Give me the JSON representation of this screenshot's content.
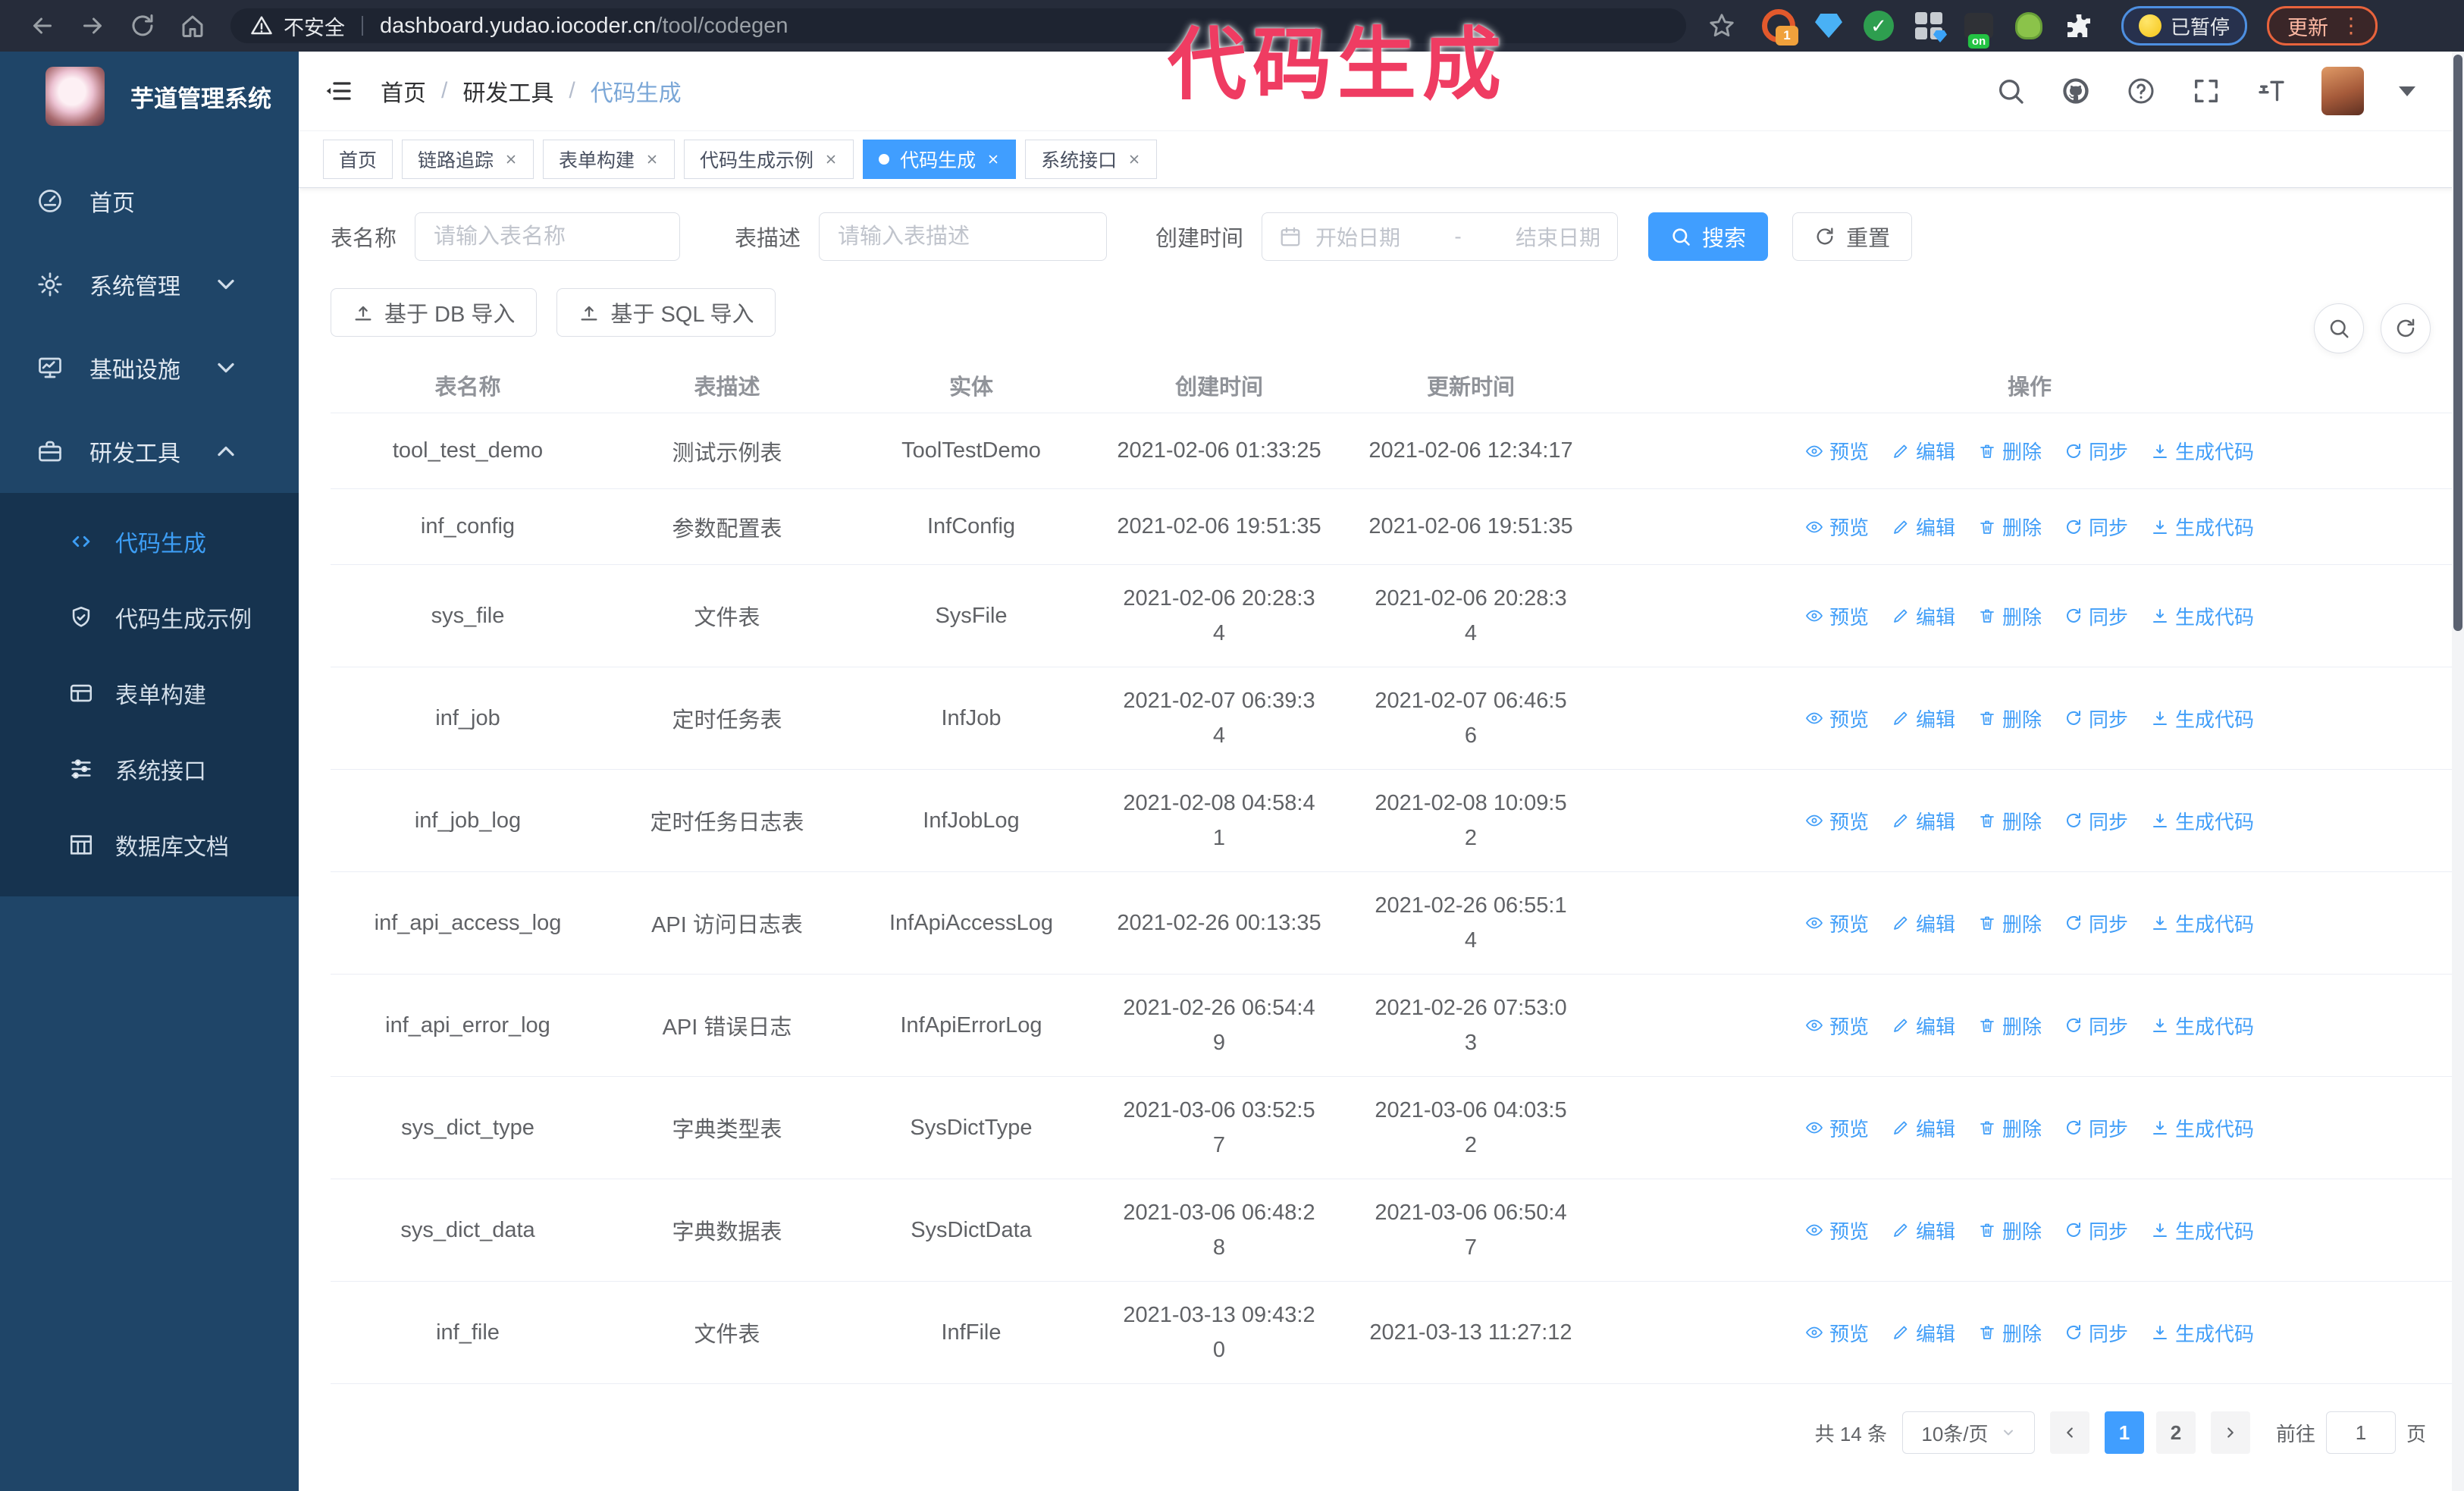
{
  "colors": {
    "primary": "#409eff",
    "sidebar_bg": "#1f4568",
    "submenu_bg": "#16334f",
    "chrome_bg": "#262c3a",
    "annotation_pink": "#ef3c62",
    "link_blue": "#419ef8"
  },
  "browser": {
    "not_secure": "不安全",
    "url_host": "dashboard.yudao.iocoder.cn",
    "url_path": "/tool/codegen",
    "paused_badge": "已暂停",
    "update_button": "更新",
    "extensions": [
      {
        "name": "ext-orange-circle",
        "badge": "1"
      },
      {
        "name": "ext-blue-gem"
      },
      {
        "name": "ext-green-check",
        "glyph": "✓"
      },
      {
        "name": "ext-grid-diamond"
      },
      {
        "name": "ext-dark-on",
        "badge": "on"
      },
      {
        "name": "ext-green-bot"
      },
      {
        "name": "ext-puzzle"
      }
    ]
  },
  "annotation": {
    "text": "代码生成"
  },
  "sidebar": {
    "title": "芋道管理系统",
    "items": [
      {
        "label": "首页",
        "icon": "dashboard-icon"
      },
      {
        "label": "系统管理",
        "icon": "gear-icon",
        "chevron": "down"
      },
      {
        "label": "基础设施",
        "icon": "monitor-icon",
        "chevron": "down"
      },
      {
        "label": "研发工具",
        "icon": "toolbox-icon",
        "chevron": "up",
        "expanded": true
      }
    ],
    "submenu": [
      {
        "label": "代码生成",
        "icon": "code-icon",
        "active": true
      },
      {
        "label": "代码生成示例",
        "icon": "shield-check-icon"
      },
      {
        "label": "表单构建",
        "icon": "form-icon"
      },
      {
        "label": "系统接口",
        "icon": "sliders-icon"
      },
      {
        "label": "数据库文档",
        "icon": "database-doc-icon"
      }
    ]
  },
  "topbar": {
    "breadcrumb": [
      "首页",
      "研发工具",
      "代码生成"
    ],
    "separator": "/"
  },
  "tags_view": {
    "tabs": [
      {
        "label": "首页",
        "closable": false
      },
      {
        "label": "链路追踪",
        "closable": true
      },
      {
        "label": "表单构建",
        "closable": true
      },
      {
        "label": "代码生成示例",
        "closable": true
      },
      {
        "label": "代码生成",
        "closable": true,
        "active": true
      },
      {
        "label": "系统接口",
        "closable": true
      }
    ]
  },
  "filters": {
    "table_name": {
      "label": "表名称",
      "placeholder": "请输入表名称"
    },
    "table_desc": {
      "label": "表描述",
      "placeholder": "请输入表描述"
    },
    "created_time": {
      "label": "创建时间",
      "start_placeholder": "开始日期",
      "separator": "-",
      "end_placeholder": "结束日期"
    },
    "search_label": "搜索",
    "reset_label": "重置"
  },
  "toolbar": {
    "db_import": "基于 DB 导入",
    "sql_import": "基于 SQL 导入"
  },
  "table": {
    "columns": [
      "表名称",
      "表描述",
      "实体",
      "创建时间",
      "更新时间",
      "操作"
    ],
    "row_actions": [
      "预览",
      "编辑",
      "删除",
      "同步",
      "生成代码"
    ],
    "action_icons": [
      "eye-icon",
      "edit-icon",
      "delete-icon",
      "sync-icon",
      "download-icon"
    ],
    "rows": [
      {
        "name": "tool_test_demo",
        "desc": "测试示例表",
        "entity": "ToolTestDemo",
        "created": "2021-02-06 01:33:25",
        "updated": "2021-02-06 12:34:17",
        "created_wrapped": false,
        "updated_wrapped": false
      },
      {
        "name": "inf_config",
        "desc": "参数配置表",
        "entity": "InfConfig",
        "created": "2021-02-06 19:51:35",
        "updated": "2021-02-06 19:51:35",
        "created_wrapped": false,
        "updated_wrapped": false
      },
      {
        "name": "sys_file",
        "desc": "文件表",
        "entity": "SysFile",
        "created": "2021-02-06 20:28:34",
        "updated": "2021-02-06 20:28:34",
        "created_wrapped": true,
        "updated_wrapped": true
      },
      {
        "name": "inf_job",
        "desc": "定时任务表",
        "entity": "InfJob",
        "created": "2021-02-07 06:39:34",
        "updated": "2021-02-07 06:46:56",
        "created_wrapped": true,
        "updated_wrapped": true
      },
      {
        "name": "inf_job_log",
        "desc": "定时任务日志表",
        "entity": "InfJobLog",
        "created": "2021-02-08 04:58:41",
        "updated": "2021-02-08 10:09:52",
        "created_wrapped": true,
        "updated_wrapped": true
      },
      {
        "name": "inf_api_access_log",
        "desc": "API 访问日志表",
        "entity": "InfApiAccessLog",
        "created": "2021-02-26 00:13:35",
        "updated": "2021-02-26 06:55:14",
        "created_wrapped": false,
        "updated_wrapped": true
      },
      {
        "name": "inf_api_error_log",
        "desc": "API 错误日志",
        "entity": "InfApiErrorLog",
        "created": "2021-02-26 06:54:49",
        "updated": "2021-02-26 07:53:03",
        "created_wrapped": true,
        "updated_wrapped": true
      },
      {
        "name": "sys_dict_type",
        "desc": "字典类型表",
        "entity": "SysDictType",
        "created": "2021-03-06 03:52:57",
        "updated": "2021-03-06 04:03:52",
        "created_wrapped": true,
        "updated_wrapped": true
      },
      {
        "name": "sys_dict_data",
        "desc": "字典数据表",
        "entity": "SysDictData",
        "created": "2021-03-06 06:48:28",
        "updated": "2021-03-06 06:50:47",
        "created_wrapped": true,
        "updated_wrapped": true
      },
      {
        "name": "inf_file",
        "desc": "文件表",
        "entity": "InfFile",
        "created": "2021-03-13 09:43:20",
        "updated": "2021-03-13 11:27:12",
        "created_wrapped": true,
        "updated_wrapped": false
      }
    ]
  },
  "pagination": {
    "total_label": "共 14 条",
    "page_size": "10条/页",
    "pages": [
      "1",
      "2"
    ],
    "active_page": "1",
    "goto_label": "前往",
    "goto_value": "1",
    "page_unit": "页"
  }
}
